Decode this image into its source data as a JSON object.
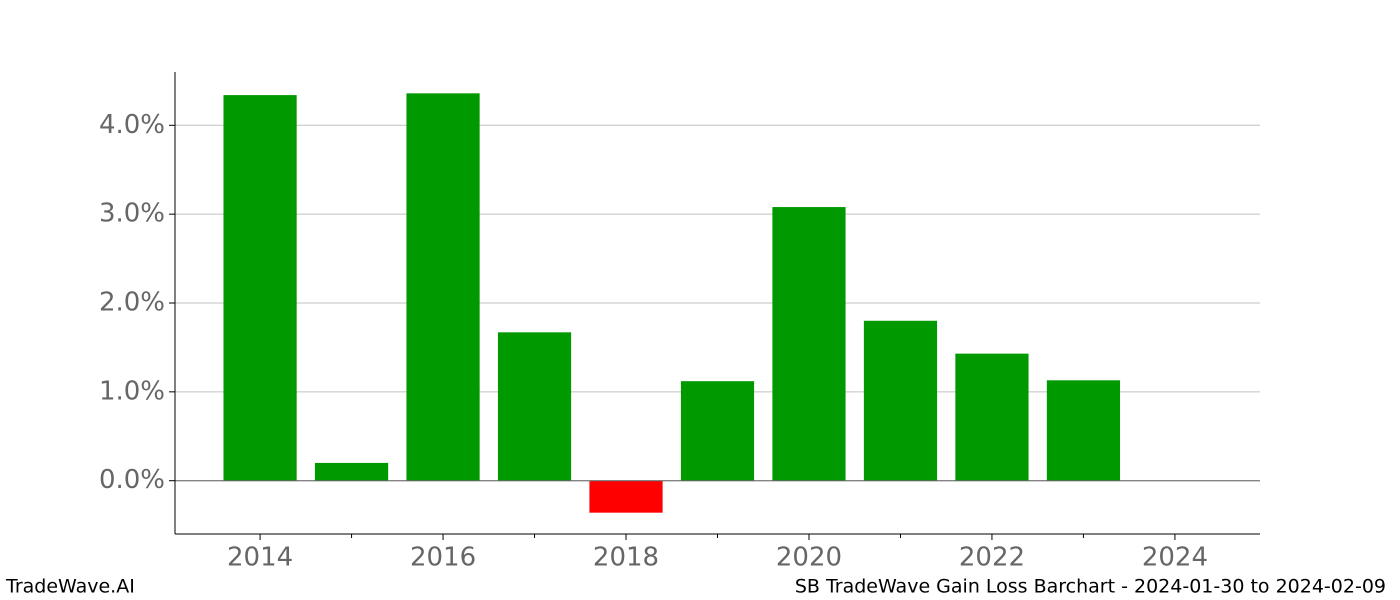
{
  "chart_data": {
    "type": "bar",
    "x": [
      2014,
      2015,
      2016,
      2017,
      2018,
      2019,
      2020,
      2021,
      2022,
      2023
    ],
    "values": [
      4.34,
      0.2,
      4.36,
      1.67,
      -0.36,
      1.12,
      3.08,
      1.8,
      1.43,
      1.13
    ],
    "positive_color": "#009900",
    "negative_color": "#ff0000",
    "xlim": [
      2013.07,
      2024.93
    ],
    "xticks": [
      2014,
      2016,
      2018,
      2020,
      2022,
      2024
    ],
    "xminor_ticks": [
      2015,
      2017,
      2019,
      2021,
      2023
    ],
    "ylim": [
      -0.6,
      4.6
    ],
    "yticks": [
      {
        "value": 0,
        "label": "0.0%"
      },
      {
        "value": 1,
        "label": "1.0%"
      },
      {
        "value": 2,
        "label": "2.0%"
      },
      {
        "value": 3,
        "label": "3.0%"
      },
      {
        "value": 4,
        "label": "4.0%"
      }
    ],
    "grid": true,
    "bar_width": 0.8,
    "footer_left": "TradeWave.AI",
    "footer_right": "SB TradeWave Gain Loss Barchart - 2024-01-30 to 2024-02-09"
  }
}
